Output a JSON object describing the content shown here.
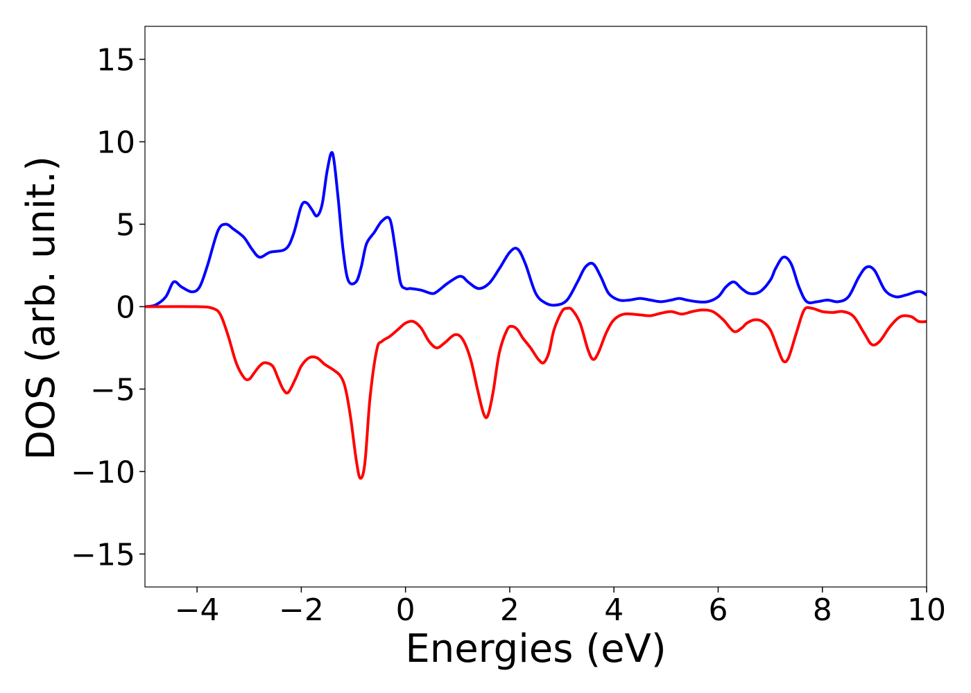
{
  "chart_data": {
    "type": "line",
    "title": "",
    "xlabel": "Energies (eV)",
    "ylabel": "DOS (arb. unit.)",
    "xlim": [
      -5,
      10
    ],
    "ylim": [
      -17,
      17
    ],
    "xticks": [
      -4,
      -2,
      0,
      2,
      4,
      6,
      8,
      10
    ],
    "xtick_labels": [
      "−4",
      "−2",
      "0",
      "2",
      "4",
      "6",
      "8",
      "10"
    ],
    "yticks": [
      15,
      10,
      5,
      0,
      -5,
      -10,
      -15
    ],
    "ytick_labels": [
      "15",
      "10",
      "5",
      "0",
      "−5",
      "−10",
      "−15"
    ],
    "grid": false,
    "series": [
      {
        "color": "#0000ff",
        "x": [
          -5.0,
          -4.8,
          -4.6,
          -4.45,
          -4.3,
          -4.1,
          -3.95,
          -3.8,
          -3.6,
          -3.45,
          -3.3,
          -3.1,
          -2.95,
          -2.8,
          -2.6,
          -2.3,
          -2.15,
          -2.0,
          -1.9,
          -1.8,
          -1.7,
          -1.6,
          -1.5,
          -1.4,
          -1.3,
          -1.2,
          -1.1,
          -0.95,
          -0.85,
          -0.75,
          -0.6,
          -0.45,
          -0.3,
          -0.2,
          -0.1,
          0.0,
          0.1,
          0.3,
          0.5,
          0.6,
          0.8,
          1.0,
          1.1,
          1.2,
          1.4,
          1.6,
          1.8,
          2.0,
          2.15,
          2.3,
          2.5,
          2.7,
          2.9,
          3.1,
          3.3,
          3.45,
          3.6,
          3.75,
          3.9,
          4.1,
          4.3,
          4.5,
          4.7,
          4.9,
          5.1,
          5.25,
          5.4,
          5.6,
          5.8,
          6.0,
          6.15,
          6.3,
          6.45,
          6.6,
          6.8,
          7.0,
          7.1,
          7.25,
          7.4,
          7.55,
          7.7,
          7.9,
          8.1,
          8.3,
          8.5,
          8.7,
          8.85,
          9.0,
          9.2,
          9.4,
          9.6,
          9.8,
          9.9,
          10.0
        ],
        "y": [
          0.0,
          0.1,
          0.6,
          1.5,
          1.2,
          0.9,
          1.2,
          2.5,
          4.6,
          5.0,
          4.7,
          4.2,
          3.5,
          3.0,
          3.3,
          3.5,
          4.4,
          6.1,
          6.3,
          5.9,
          5.5,
          6.2,
          8.3,
          9.3,
          6.8,
          3.5,
          1.6,
          1.5,
          2.4,
          3.8,
          4.5,
          5.2,
          5.3,
          3.6,
          1.5,
          1.1,
          1.1,
          1.0,
          0.8,
          0.9,
          1.4,
          1.8,
          1.8,
          1.5,
          1.1,
          1.4,
          2.3,
          3.3,
          3.5,
          2.6,
          0.8,
          0.2,
          0.1,
          0.4,
          1.5,
          2.4,
          2.6,
          1.8,
          0.8,
          0.4,
          0.4,
          0.5,
          0.4,
          0.3,
          0.4,
          0.5,
          0.4,
          0.3,
          0.3,
          0.6,
          1.2,
          1.5,
          1.1,
          0.8,
          0.9,
          1.6,
          2.3,
          3.0,
          2.6,
          1.2,
          0.3,
          0.3,
          0.4,
          0.3,
          0.6,
          1.8,
          2.4,
          2.2,
          1.0,
          0.6,
          0.7,
          0.9,
          0.9,
          0.7
        ]
      },
      {
        "color": "#ff0000",
        "x": [
          -5.0,
          -4.0,
          -3.7,
          -3.55,
          -3.4,
          -3.25,
          -3.1,
          -3.0,
          -2.9,
          -2.8,
          -2.7,
          -2.55,
          -2.45,
          -2.35,
          -2.25,
          -2.1,
          -2.0,
          -1.85,
          -1.7,
          -1.55,
          -1.4,
          -1.25,
          -1.15,
          -1.05,
          -0.95,
          -0.87,
          -0.78,
          -0.68,
          -0.55,
          -0.45,
          -0.3,
          -0.15,
          0.0,
          0.15,
          0.3,
          0.45,
          0.6,
          0.75,
          0.95,
          1.1,
          1.25,
          1.38,
          1.5,
          1.58,
          1.68,
          1.8,
          1.95,
          2.05,
          2.15,
          2.25,
          2.4,
          2.55,
          2.65,
          2.75,
          2.85,
          3.0,
          3.1,
          3.2,
          3.35,
          3.5,
          3.6,
          3.7,
          3.85,
          4.0,
          4.2,
          4.5,
          4.7,
          4.9,
          5.1,
          5.3,
          5.5,
          5.7,
          5.9,
          6.1,
          6.3,
          6.45,
          6.55,
          6.7,
          6.85,
          7.0,
          7.15,
          7.25,
          7.35,
          7.5,
          7.65,
          7.8,
          8.0,
          8.2,
          8.4,
          8.6,
          8.8,
          8.95,
          9.1,
          9.3,
          9.5,
          9.7,
          9.85,
          10.0
        ],
        "y": [
          0.0,
          0.0,
          -0.1,
          -0.5,
          -1.8,
          -3.4,
          -4.3,
          -4.4,
          -4.0,
          -3.6,
          -3.4,
          -3.6,
          -4.3,
          -5.0,
          -5.2,
          -4.3,
          -3.6,
          -3.1,
          -3.1,
          -3.5,
          -3.8,
          -4.2,
          -5.0,
          -6.8,
          -9.2,
          -10.4,
          -9.5,
          -5.5,
          -2.6,
          -2.1,
          -1.8,
          -1.4,
          -1.0,
          -0.9,
          -1.3,
          -2.1,
          -2.5,
          -2.2,
          -1.7,
          -2.0,
          -3.2,
          -5.0,
          -6.5,
          -6.6,
          -5.2,
          -2.8,
          -1.4,
          -1.2,
          -1.4,
          -1.9,
          -2.5,
          -3.2,
          -3.4,
          -2.8,
          -1.4,
          -0.3,
          -0.1,
          -0.2,
          -1.0,
          -2.6,
          -3.2,
          -2.8,
          -1.6,
          -0.8,
          -0.45,
          -0.5,
          -0.55,
          -0.4,
          -0.3,
          -0.45,
          -0.3,
          -0.2,
          -0.3,
          -0.8,
          -1.5,
          -1.3,
          -1.0,
          -0.8,
          -0.9,
          -1.4,
          -2.6,
          -3.3,
          -3.1,
          -1.6,
          -0.2,
          -0.1,
          -0.3,
          -0.35,
          -0.3,
          -0.6,
          -1.6,
          -2.3,
          -2.1,
          -1.2,
          -0.6,
          -0.6,
          -0.9,
          -0.9
        ]
      }
    ]
  }
}
